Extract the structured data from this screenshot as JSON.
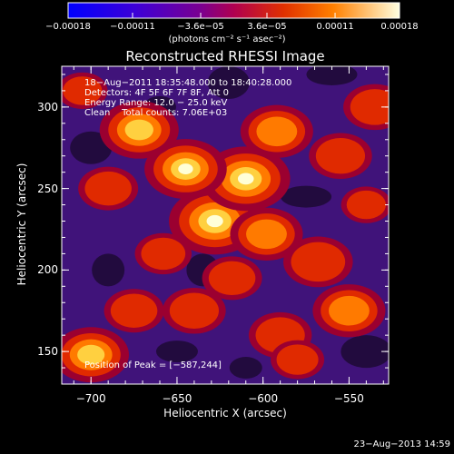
{
  "chart_data": [
    {
      "type": "heatmap",
      "title": "Reconstructed RHESSI Image",
      "xlabel": "Heliocentric X (arcsec)",
      "ylabel": "Heliocentric Y (arcsec)",
      "xlim": [
        -717,
        -527
      ],
      "ylim": [
        130,
        325
      ],
      "x_ticks": [
        -700,
        -650,
        -600,
        -550
      ],
      "y_ticks": [
        150,
        200,
        250,
        300
      ],
      "x_tick_labels": [
        "−700",
        "−650",
        "−600",
        "−550"
      ],
      "y_tick_labels": [
        "150",
        "200",
        "250",
        "300"
      ],
      "annotations": [
        "18−Aug−2011 18:35:48.000 to 18:40:28.000",
        "Detectors: 4F 5F 6F 7F 8F, Att 0",
        "Energy Range: 12.0 − 25.0 keV",
        "Clean    Total counts: 7.06E+03"
      ],
      "peak_label": "Position of Peak = [−587,244]",
      "peak": [
        -587,
        244
      ],
      "blobs": [
        {
          "x": -628,
          "y": 230,
          "v": 1.0
        },
        {
          "x": -610,
          "y": 256,
          "v": 0.95
        },
        {
          "x": -645,
          "y": 262,
          "v": 0.85
        },
        {
          "x": -672,
          "y": 286,
          "v": 0.8
        },
        {
          "x": -592,
          "y": 285,
          "v": 0.7
        },
        {
          "x": -598,
          "y": 222,
          "v": 0.7
        },
        {
          "x": -568,
          "y": 205,
          "v": 0.65
        },
        {
          "x": -550,
          "y": 175,
          "v": 0.7
        },
        {
          "x": -700,
          "y": 148,
          "v": 0.75
        },
        {
          "x": -675,
          "y": 175,
          "v": 0.5
        },
        {
          "x": -555,
          "y": 270,
          "v": 0.55
        },
        {
          "x": -535,
          "y": 300,
          "v": 0.55
        },
        {
          "x": -690,
          "y": 250,
          "v": 0.5
        },
        {
          "x": -705,
          "y": 310,
          "v": 0.35
        },
        {
          "x": -640,
          "y": 175,
          "v": 0.55
        },
        {
          "x": -590,
          "y": 160,
          "v": 0.55
        },
        {
          "x": -618,
          "y": 195,
          "v": 0.5
        },
        {
          "x": -658,
          "y": 210,
          "v": 0.45
        },
        {
          "x": -540,
          "y": 240,
          "v": 0.35
        },
        {
          "x": -580,
          "y": 145,
          "v": 0.4
        }
      ]
    },
    {
      "type": "colorbar",
      "tick_values": [
        -0.00018,
        -0.00011,
        -3.6e-05,
        3.6e-05,
        0.00011,
        0.00018
      ],
      "tick_labels": [
        "−0.00018",
        "−0.00011",
        "−3.6e−05",
        "3.6e−05",
        "0.00011",
        "0.00018"
      ],
      "range": [
        -0.00018,
        0.00018
      ],
      "units": "(photons cm⁻² s⁻¹ asec⁻²)"
    }
  ],
  "footer_date": "23−Aug−2013 14:59"
}
